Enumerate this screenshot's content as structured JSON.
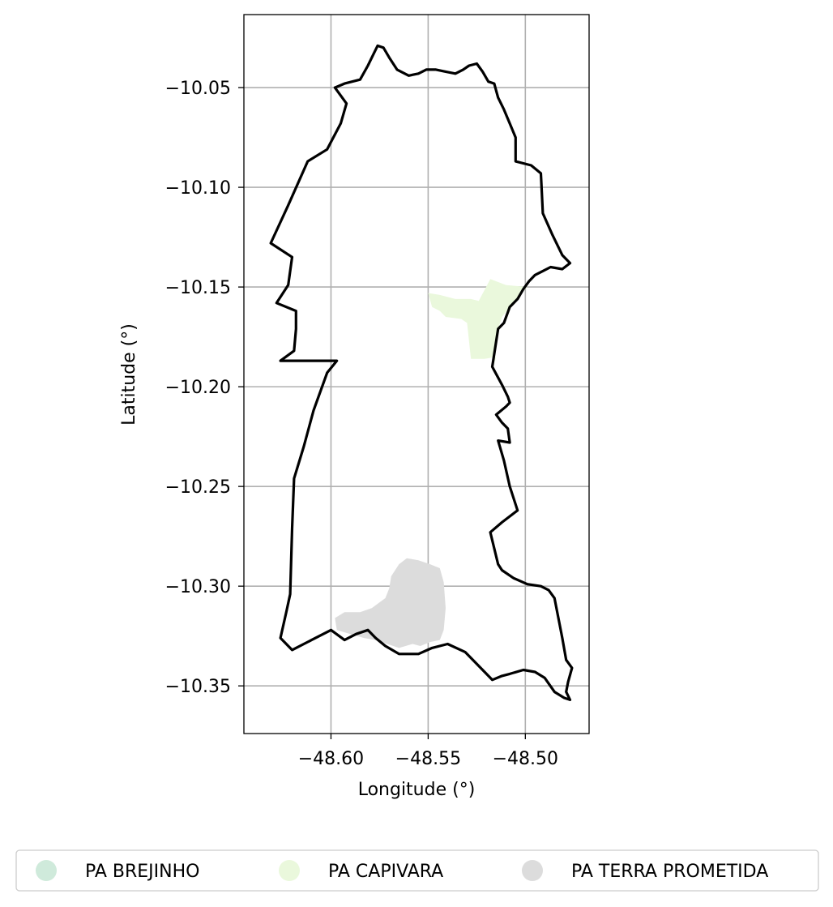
{
  "map": {
    "xlabel": "Longitude (°)",
    "ylabel": "Latitude (°)",
    "xlim": [
      -48.6448,
      -48.4672
    ],
    "ylim": [
      -10.3739,
      -10.0134
    ],
    "grid": true,
    "x_ticks": [
      -48.6,
      -48.55,
      -48.5
    ],
    "x_tick_labels": [
      "−48.60",
      "−48.55",
      "−48.50"
    ],
    "y_ticks": [
      -10.05,
      -10.1,
      -10.15,
      -10.2,
      -10.25,
      -10.3,
      -10.35
    ],
    "y_tick_labels": [
      "−10.05",
      "−10.10",
      "−10.15",
      "−10.20",
      "−10.25",
      "−10.30",
      "−10.35"
    ],
    "legend_position": "bottom-center",
    "boundary_color": "#000000",
    "boundary": [
      [
        -48.598,
        -10.05
      ],
      [
        -48.593,
        -10.048
      ],
      [
        -48.585,
        -10.046
      ],
      [
        -48.581,
        -10.039
      ],
      [
        -48.578,
        -10.033
      ],
      [
        -48.576,
        -10.029
      ],
      [
        -48.573,
        -10.03
      ],
      [
        -48.57,
        -10.035
      ],
      [
        -48.566,
        -10.041
      ],
      [
        -48.56,
        -10.044
      ],
      [
        -48.555,
        -10.043
      ],
      [
        -48.551,
        -10.041
      ],
      [
        -48.546,
        -10.041
      ],
      [
        -48.541,
        -10.042
      ],
      [
        -48.536,
        -10.043
      ],
      [
        -48.532,
        -10.041
      ],
      [
        -48.529,
        -10.039
      ],
      [
        -48.525,
        -10.038
      ],
      [
        -48.522,
        -10.042
      ],
      [
        -48.519,
        -10.047
      ],
      [
        -48.516,
        -10.048
      ],
      [
        -48.514,
        -10.055
      ],
      [
        -48.511,
        -10.061
      ],
      [
        -48.508,
        -10.068
      ],
      [
        -48.505,
        -10.075
      ],
      [
        -48.505,
        -10.087
      ],
      [
        -48.497,
        -10.089
      ],
      [
        -48.492,
        -10.093
      ],
      [
        -48.491,
        -10.113
      ],
      [
        -48.486,
        -10.124
      ],
      [
        -48.481,
        -10.134
      ],
      [
        -48.477,
        -10.138
      ],
      [
        -48.481,
        -10.141
      ],
      [
        -48.487,
        -10.14
      ],
      [
        -48.491,
        -10.142
      ],
      [
        -48.495,
        -10.144
      ],
      [
        -48.498,
        -10.147
      ],
      [
        -48.501,
        -10.151
      ],
      [
        -48.504,
        -10.156
      ],
      [
        -48.508,
        -10.16
      ],
      [
        -48.511,
        -10.168
      ],
      [
        -48.514,
        -10.171
      ],
      [
        -48.517,
        -10.19
      ],
      [
        -48.512,
        -10.199
      ],
      [
        -48.509,
        -10.205
      ],
      [
        -48.508,
        -10.208
      ],
      [
        -48.51,
        -10.21
      ],
      [
        -48.515,
        -10.214
      ],
      [
        -48.512,
        -10.218
      ],
      [
        -48.509,
        -10.221
      ],
      [
        -48.508,
        -10.228
      ],
      [
        -48.514,
        -10.227
      ],
      [
        -48.511,
        -10.237
      ],
      [
        -48.508,
        -10.25
      ],
      [
        -48.504,
        -10.262
      ],
      [
        -48.512,
        -10.268
      ],
      [
        -48.518,
        -10.273
      ],
      [
        -48.514,
        -10.289
      ],
      [
        -48.512,
        -10.292
      ],
      [
        -48.506,
        -10.296
      ],
      [
        -48.499,
        -10.299
      ],
      [
        -48.492,
        -10.3
      ],
      [
        -48.488,
        -10.302
      ],
      [
        -48.485,
        -10.306
      ],
      [
        -48.483,
        -10.316
      ],
      [
        -48.481,
        -10.326
      ],
      [
        -48.479,
        -10.337
      ],
      [
        -48.476,
        -10.341
      ],
      [
        -48.478,
        -10.348
      ],
      [
        -48.479,
        -10.353
      ],
      [
        -48.477,
        -10.357
      ],
      [
        -48.48,
        -10.356
      ],
      [
        -48.485,
        -10.353
      ],
      [
        -48.49,
        -10.346
      ],
      [
        -48.495,
        -10.343
      ],
      [
        -48.501,
        -10.342
      ],
      [
        -48.508,
        -10.344
      ],
      [
        -48.512,
        -10.345
      ],
      [
        -48.517,
        -10.347
      ],
      [
        -48.522,
        -10.342
      ],
      [
        -48.531,
        -10.333
      ],
      [
        -48.54,
        -10.329
      ],
      [
        -48.548,
        -10.331
      ],
      [
        -48.555,
        -10.334
      ],
      [
        -48.565,
        -10.334
      ],
      [
        -48.572,
        -10.33
      ],
      [
        -48.577,
        -10.326
      ],
      [
        -48.581,
        -10.322
      ],
      [
        -48.587,
        -10.324
      ],
      [
        -48.593,
        -10.327
      ],
      [
        -48.6,
        -10.322
      ],
      [
        -48.61,
        -10.327
      ],
      [
        -48.62,
        -10.332
      ],
      [
        -48.626,
        -10.326
      ],
      [
        -48.623,
        -10.313
      ],
      [
        -48.621,
        -10.304
      ],
      [
        -48.62,
        -10.271
      ],
      [
        -48.619,
        -10.246
      ],
      [
        -48.614,
        -10.23
      ],
      [
        -48.609,
        -10.212
      ],
      [
        -48.602,
        -10.193
      ],
      [
        -48.597,
        -10.187
      ],
      [
        -48.626,
        -10.187
      ],
      [
        -48.619,
        -10.182
      ],
      [
        -48.618,
        -10.171
      ],
      [
        -48.618,
        -10.162
      ],
      [
        -48.628,
        -10.158
      ],
      [
        -48.622,
        -10.149
      ],
      [
        -48.62,
        -10.135
      ],
      [
        -48.631,
        -10.128
      ],
      [
        -48.622,
        -10.109
      ],
      [
        -48.612,
        -10.087
      ],
      [
        -48.602,
        -10.081
      ],
      [
        -48.595,
        -10.068
      ],
      [
        -48.592,
        -10.058
      ],
      [
        -48.598,
        -10.05
      ]
    ],
    "areas": [
      {
        "name": "PA CAPIVARA",
        "color": "#eaf8dc",
        "polygon": [
          [
            -48.55,
            -10.153
          ],
          [
            -48.544,
            -10.154
          ],
          [
            -48.536,
            -10.156
          ],
          [
            -48.528,
            -10.156
          ],
          [
            -48.524,
            -10.157
          ],
          [
            -48.518,
            -10.146
          ],
          [
            -48.51,
            -10.149
          ],
          [
            -48.499,
            -10.15
          ],
          [
            -48.504,
            -10.155
          ],
          [
            -48.512,
            -10.165
          ],
          [
            -48.514,
            -10.171
          ],
          [
            -48.516,
            -10.189
          ],
          [
            -48.515,
            -10.185
          ],
          [
            -48.521,
            -10.186
          ],
          [
            -48.528,
            -10.186
          ],
          [
            -48.53,
            -10.168
          ],
          [
            -48.533,
            -10.166
          ],
          [
            -48.541,
            -10.165
          ],
          [
            -48.544,
            -10.162
          ],
          [
            -48.548,
            -10.16
          ]
        ]
      },
      {
        "name": "PA TERRA PROMETIDA",
        "color": "#dcdcdc",
        "polygon": [
          [
            -48.569,
            -10.295
          ],
          [
            -48.565,
            -10.289
          ],
          [
            -48.561,
            -10.286
          ],
          [
            -48.555,
            -10.287
          ],
          [
            -48.549,
            -10.289
          ],
          [
            -48.544,
            -10.291
          ],
          [
            -48.542,
            -10.298
          ],
          [
            -48.541,
            -10.311
          ],
          [
            -48.542,
            -10.322
          ],
          [
            -48.544,
            -10.327
          ],
          [
            -48.549,
            -10.328
          ],
          [
            -48.554,
            -10.33
          ],
          [
            -48.558,
            -10.329
          ],
          [
            -48.565,
            -10.331
          ],
          [
            -48.571,
            -10.329
          ],
          [
            -48.577,
            -10.327
          ],
          [
            -48.583,
            -10.326
          ],
          [
            -48.59,
            -10.324
          ],
          [
            -48.597,
            -10.322
          ],
          [
            -48.598,
            -10.316
          ],
          [
            -48.593,
            -10.313
          ],
          [
            -48.585,
            -10.313
          ],
          [
            -48.579,
            -10.311
          ],
          [
            -48.572,
            -10.306
          ],
          [
            -48.57,
            -10.301
          ]
        ]
      }
    ],
    "legend": [
      {
        "label": "PA BREJINHO",
        "color": "#cfeadb"
      },
      {
        "label": "PA CAPIVARA",
        "color": "#eaf8dc"
      },
      {
        "label": "PA TERRA PROMETIDA",
        "color": "#dcdcdc"
      }
    ]
  }
}
